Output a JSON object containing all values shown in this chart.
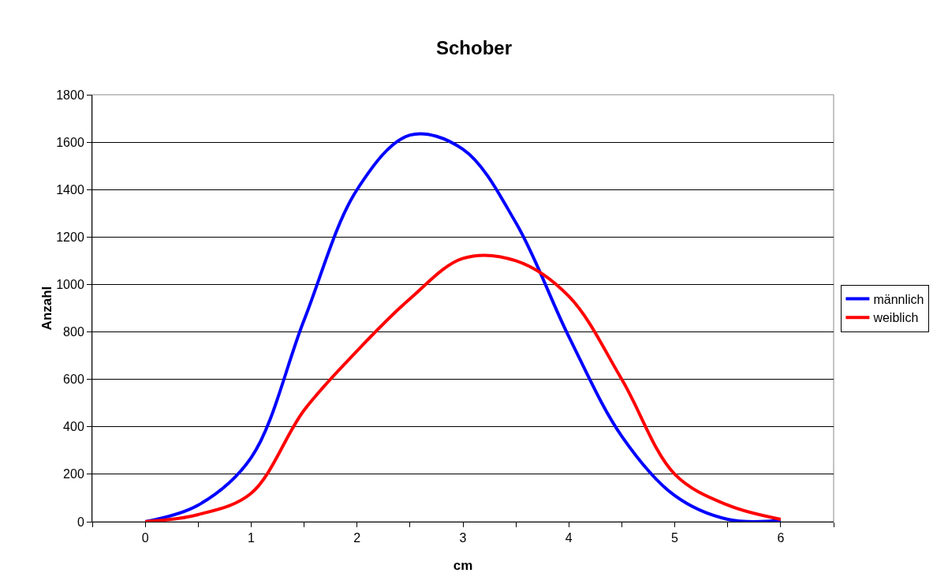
{
  "chart_data": {
    "type": "line",
    "title": "Schober",
    "xlabel": "cm",
    "ylabel": "Anzahl",
    "x": [
      0,
      0.5,
      1,
      1.5,
      2,
      2.5,
      3,
      3.5,
      4,
      4.5,
      5,
      5.5,
      6
    ],
    "series": [
      {
        "name": "männlich",
        "color": "#0000ff",
        "values": [
          0,
          70,
          270,
          850,
          1400,
          1630,
          1570,
          1260,
          780,
          360,
          110,
          10,
          5
        ]
      },
      {
        "name": "weiblich",
        "color": "#ff0000",
        "values": [
          0,
          30,
          120,
          470,
          720,
          940,
          1110,
          1100,
          950,
          600,
          200,
          70,
          10
        ]
      }
    ],
    "xlim": [
      -0.5,
      6.5
    ],
    "xticks": [
      {
        "value": -0.5,
        "label": null
      },
      0,
      {
        "value": 0.5,
        "label": null
      },
      1,
      {
        "value": 1.5,
        "label": null
      },
      2,
      {
        "value": 2.5,
        "label": null
      },
      3,
      {
        "value": 3.5,
        "label": null
      },
      4,
      {
        "value": 4.5,
        "label": null
      },
      5,
      {
        "value": 5.5,
        "label": null
      },
      6,
      {
        "value": 6.5,
        "label": null
      }
    ],
    "ylim": [
      0,
      1800
    ],
    "yticks": [
      0,
      200,
      400,
      600,
      800,
      1000,
      1200,
      1400,
      1600,
      1800
    ],
    "grid": "y",
    "legend": "right",
    "marker": "none",
    "line_style": "solid"
  }
}
